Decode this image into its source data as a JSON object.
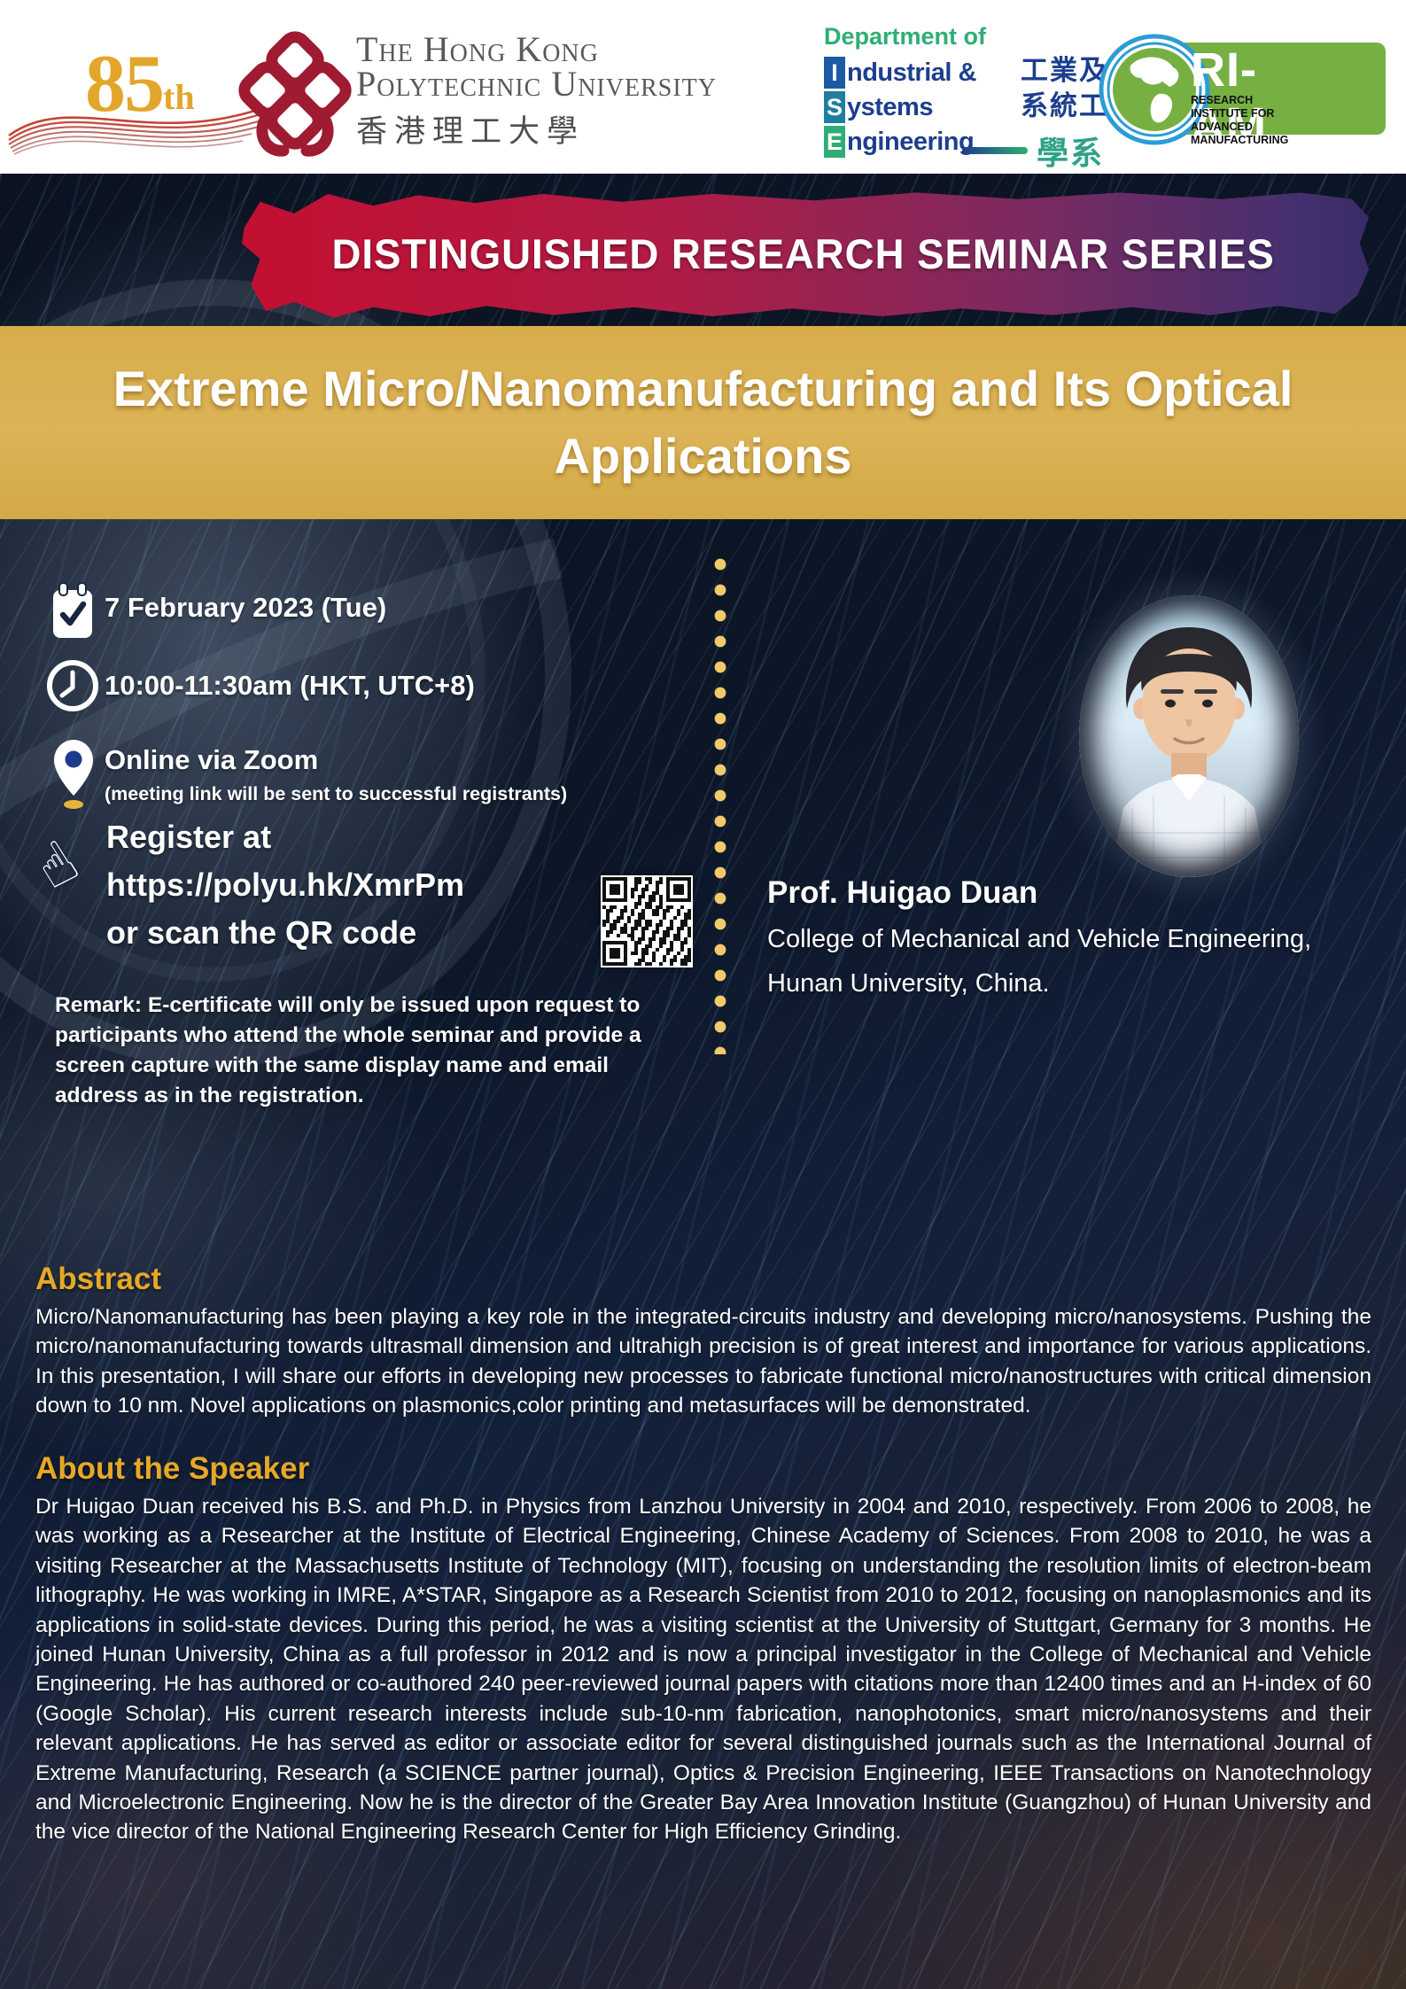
{
  "header": {
    "anniversary": {
      "number": "85",
      "suffix": "th"
    },
    "university": {
      "name_line1": "The Hong Kong",
      "name_line2": "Polytechnic University",
      "name_zh": "香港理工大學"
    },
    "department": {
      "dept_of": "Department of",
      "lines": [
        {
          "initial": "I",
          "rest": "ndustrial &"
        },
        {
          "initial": "S",
          "rest": "ystems"
        },
        {
          "initial": "E",
          "rest": "ngineering"
        }
      ],
      "zh_line1": "工業及",
      "zh_line2": "系統工程",
      "zh_line3": "學系"
    },
    "riam": {
      "acronym": "RI-AM",
      "sub_line1": "RESEARCH INSTITUTE FOR",
      "sub_line2": "ADVANCED  MANUFACTURING"
    }
  },
  "banner": {
    "text": "DISTINGUISHED RESEARCH SEMINAR SERIES"
  },
  "title": {
    "line1": "Extreme Micro/Nanomanufacturing and Its Optical",
    "line2": "Applications"
  },
  "details": {
    "date": "7 February 2023 (Tue)",
    "time": "10:00-11:30am (HKT, UTC+8)",
    "venue": "Online via Zoom",
    "venue_note": "(meeting link will be sent to successful registrants)",
    "register_line1": "Register at",
    "register_line2": "https://polyu.hk/XmrPm",
    "register_line3": "or scan the QR code",
    "remark": "Remark:  E-certificate will only be issued upon request to participants who attend the whole seminar and provide a screen capture with the same display name and email address as in the registration."
  },
  "speaker": {
    "name": "Prof. Huigao Duan",
    "affiliation_line1": "College of Mechanical and Vehicle Engineering,",
    "affiliation_line2": "Hunan University, China."
  },
  "abstract": {
    "heading": "Abstract",
    "body": "Micro/Nanomanufacturing has been playing a key role in the integrated-circuits industry and developing micro/nanosystems. Pushing the micro/nanomanufacturing towards ultrasmall dimension and ultrahigh precision is of great interest and importance for various applications. In this presentation, I will share our efforts in developing new processes to fabricate functional micro/nanostructures with critical dimension down to 10 nm. Novel applications on plasmonics,color printing and metasurfaces will be demonstrated."
  },
  "about": {
    "heading": "About the Speaker",
    "body": "Dr Huigao Duan received his B.S. and Ph.D. in Physics from Lanzhou University in 2004 and 2010, respectively. From 2006 to 2008, he was working as a Researcher at the Institute of Electrical Engineering, Chinese Academy of Sciences. From 2008 to 2010, he was a visiting Researcher at the Massachusetts Institute of Technology (MIT), focusing on understanding the resolution limits of electron-beam lithography. He was working in IMRE, A*STAR, Singapore as a Research Scientist from 2010 to 2012, focusing on nanoplasmonics and its applications in solid-state devices. During this period, he was a visiting scientist at the University of Stuttgart, Germany for 3 months. He joined Hunan University, China as a full professor in 2012 and is now a principal investigator in the College of Mechanical and Vehicle Engineering. He has authored or co-authored 240 peer-reviewed journal papers with citations more than 12400 times and an H-index of 60 (Google Scholar). His current research interests include sub-10-nm fabrication, nanophotonics, smart micro/nanosystems and their relevant applications. He has served as editor or associate editor for several distinguished journals such as the International Journal of Extreme Manufacturing, Research (a SCIENCE partner journal), Optics & Precision Engineering, IEEE Transactions on Nanotechnology and Microelectronic Engineering. Now he is the director of the Greater Bay Area Innovation Institute (Guangzhou) of Hunan University and the vice director of the National Engineering Research Center for High Efficiency Grinding."
  },
  "icons": {
    "calendar": "calendar-icon",
    "clock": "clock-icon",
    "location": "location-pin-icon",
    "register_hand": "hand-cursor-icon",
    "qr": "qr-code"
  },
  "colors": {
    "gold_band": "#D7AD4C",
    "heading_gold": "#E7A826",
    "banner_red": "#C30F31",
    "banner_purple": "#3A2C66",
    "dept_green": "#2EAE73",
    "dept_blue": "#1D3E8E",
    "riam_green": "#76B043",
    "polyu_red": "#9E1B32",
    "dots_gold": "#F2CA6B"
  }
}
